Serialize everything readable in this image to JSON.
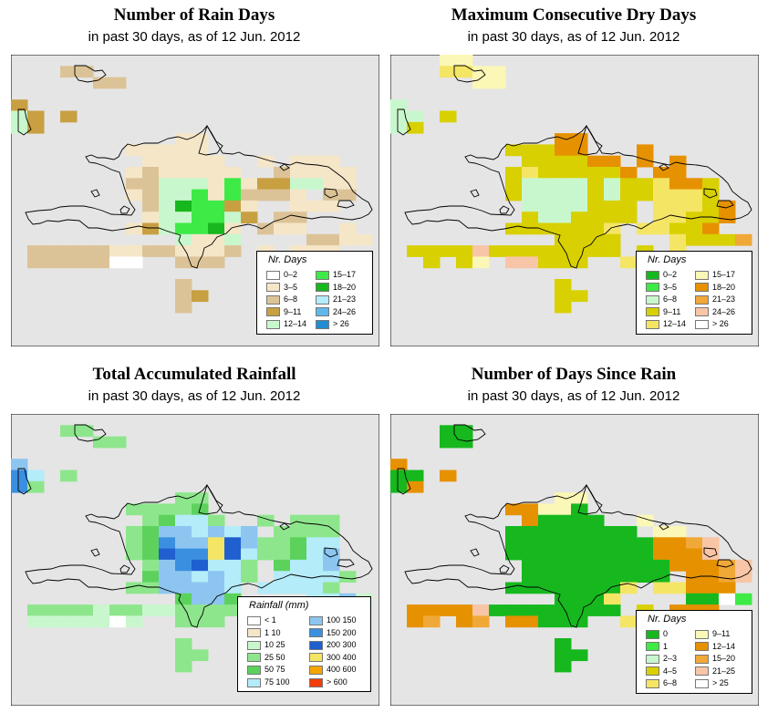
{
  "panels": [
    {
      "title": "Number of Rain Days",
      "subtitle": "in past 30 days, as of  12 Jun. 2012",
      "legend": {
        "title": "Nr. Days",
        "items": [
          {
            "label": "0–2",
            "color": "#ffffff"
          },
          {
            "label": "3–5",
            "color": "#f5e6c8"
          },
          {
            "label": "6–8",
            "color": "#dcc397"
          },
          {
            "label": "9–11",
            "color": "#c8a042"
          },
          {
            "label": "12–14",
            "color": "#c9f7cd"
          },
          {
            "label": "15–17",
            "color": "#3dea46"
          },
          {
            "label": "18–20",
            "color": "#16b81e"
          },
          {
            "label": "21–23",
            "color": "#b4ecf9"
          },
          {
            "label": "24–26",
            "color": "#5fb8ec"
          },
          {
            "label": "> 26",
            "color": "#1f8ed3"
          }
        ]
      }
    },
    {
      "title": "Maximum Consecutive Dry Days",
      "subtitle": "in past 30 days, as of  12 Jun. 2012",
      "legend": {
        "title": "Nr. Days",
        "items": [
          {
            "label": "0–2",
            "color": "#16b81e"
          },
          {
            "label": "3–5",
            "color": "#3dea46"
          },
          {
            "label": "6–8",
            "color": "#c9f7cd"
          },
          {
            "label": "9–11",
            "color": "#d8d000"
          },
          {
            "label": "12–14",
            "color": "#f4e565"
          },
          {
            "label": "15–17",
            "color": "#fbf7b6"
          },
          {
            "label": "18–20",
            "color": "#e69100"
          },
          {
            "label": "21–23",
            "color": "#f0a838"
          },
          {
            "label": "24–26",
            "color": "#f8c6a6"
          },
          {
            "label": "> 26",
            "color": "#ffffff"
          }
        ]
      }
    },
    {
      "title": "Total Accumulated Rainfall",
      "subtitle": "in past 30 days, as of  12 Jun. 2012",
      "legend": {
        "title": "Rainfall (mm)",
        "items": [
          {
            "label": "< 1",
            "color": "#ffffff"
          },
          {
            "label": "1   10",
            "color": "#f5e6c8"
          },
          {
            "label": "10   25",
            "color": "#c9f7cd"
          },
          {
            "label": "25   50",
            "color": "#8ee68c"
          },
          {
            "label": "50   75",
            "color": "#5cd25c"
          },
          {
            "label": "75   100",
            "color": "#b4ecf9"
          },
          {
            "label": "100   150",
            "color": "#8cc6f0"
          },
          {
            "label": "150   200",
            "color": "#3b8fe0"
          },
          {
            "label": "200   300",
            "color": "#1f5fcf"
          },
          {
            "label": "300   400",
            "color": "#f4e565"
          },
          {
            "label": "400   600",
            "color": "#f5a500"
          },
          {
            "label": "> 600",
            "color": "#f23c0a"
          }
        ]
      }
    },
    {
      "title": "Number of Days Since Rain",
      "subtitle": "in past 30 days, as of  12 Jun. 2012",
      "legend": {
        "title": "Nr. Days",
        "items": [
          {
            "label": "0",
            "color": "#16b81e"
          },
          {
            "label": "1",
            "color": "#3dea46"
          },
          {
            "label": "2–3",
            "color": "#c9f7cd"
          },
          {
            "label": "4–5",
            "color": "#d8d000"
          },
          {
            "label": "6–8",
            "color": "#f4e565"
          },
          {
            "label": "9–11",
            "color": "#fbf7b6"
          },
          {
            "label": "12–14",
            "color": "#e69100"
          },
          {
            "label": "15–20",
            "color": "#f0a838"
          },
          {
            "label": "21–25",
            "color": "#f8c6a6"
          },
          {
            "label": "> 25",
            "color": "#ffffff"
          }
        ]
      }
    }
  ],
  "chart_data": [
    {
      "type": "heatmap",
      "title": "Number of Rain Days",
      "subtitle": "in past 30 days, as of  12 Jun. 2012",
      "legend_title": "Nr. Days",
      "classes": [
        "0–2",
        "3–5",
        "6–8",
        "9–11",
        "12–14",
        "15–17",
        "18–20",
        "21–23",
        "24–26",
        "> 26"
      ],
      "grid": [
        "......................",
        "...22.................",
        ".....22...............",
        "......................",
        "3.....................",
        "43.3..................",
        "43....................",
        "..........11..........",
        ".......11111..........",
        "........11111..1.111..",
        ".......1211111..21111.",
        ".......22444151334411.",
        ".......12445152221.22.",
        "........2465531..111..",
        "........1445543.22....",
        ".......1345561.211..1.",
        "..........4114....2211",
        ".2222211221112.1.111..",
        ".2222200..222..2.2111.",
        "......................",
        "..........2...........",
        "..........23..........",
        "..........2...........",
        "......................",
        "......................",
        "......................"
      ]
    },
    {
      "type": "heatmap",
      "title": "Maximum Consecutive Dry Days",
      "subtitle": "in past 30 days, as of  12 Jun. 2012",
      "legend_title": "Nr. Days",
      "classes": [
        "0–2",
        "3–5",
        "6–8",
        "9–11",
        "12–14",
        "15–17",
        "18–20",
        "21–23",
        "24–26",
        "> 26"
      ],
      "grid": [
        "...55.................",
        "...4455...............",
        ".....55...............",
        "......................",
        "2.....................",
        "22.3..................",
        "23....................",
        "..........66..........",
        ".......33366...6......",
        "........333366.6.6....",
        ".......34333336.66....",
        ".......3222232334663..",
        ".......3222232334443..",
        "........2222333.44436.",
        "........3223333.44336.",
        ".......3333334.44336..",
        "..........3333...43337",
        ".3333833333333.3.4....",
        "..3.35.88333..45....2.",
        "......................",
        "..........3...........",
        "..........33..........",
        "..........3...........",
        "......................",
        "......................",
        "......................"
      ]
    },
    {
      "type": "heatmap",
      "title": "Total Accumulated Rainfall",
      "subtitle": "in past 30 days, as of  12 Jun. 2012",
      "legend_title": "Rainfall (mm)",
      "classes": [
        "< 1",
        "1   10",
        "10   25",
        "25   50",
        "50   75",
        "75   100",
        "100   150",
        "150   200",
        "200   300",
        "300   400",
        "400   600",
        "> 600"
      ],
      "grid": [
        "......................",
        "...33.................",
        ".....33...............",
        "......................",
        "6.....................",
        "75.3..................",
        "73....................",
        "..........33..........",
        ".......33334..........",
        "........34553..3.333..",
        ".......34665656.3333..",
        ".......3476698633455..",
        ".......3487798533456..",
        "........3678553.4556..",
        "........4665653.55553.",
        ".......3366665.55553..",
        "..........4664....5562",
        ".3333233223333.3.335..",
        ".2222202..333..3.3335.",
        "......................",
        "..........3...........",
        "..........33..........",
        "..........3...........",
        "......................",
        "......................",
        "......................"
      ]
    },
    {
      "type": "heatmap",
      "title": "Number of Days Since Rain",
      "subtitle": "in past 30 days, as of  12 Jun. 2012",
      "legend_title": "Nr. Days",
      "classes": [
        "0",
        "1",
        "2–3",
        "4–5",
        "6–8",
        "9–11",
        "12–14",
        "15–20",
        "21–25",
        "> 25"
      ],
      "grid": [
        "......................",
        "...00.................",
        "...00.................",
        "......................",
        "6.....................",
        "00.6..................",
        "06....................",
        "..........55..........",
        ".......66550..........",
        "........60000..5......",
        ".......00000000.55....",
        ".......0000000006678..",
        ".......0000000006668..",
        "........00000000066678",
        "........000000000.6678",
        ".......00000004.44666.",
        "..........0004....0091",
        ".6666800000000.3.666..",
        ".67.67.66000..46.6....",
        "......................",
        "..........0...........",
        "..........00..........",
        "..........0...........",
        "......................",
        "......................",
        "......................"
      ]
    }
  ]
}
